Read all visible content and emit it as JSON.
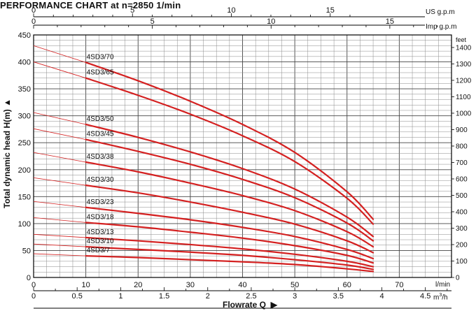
{
  "title": "PERFORMANCE CHART at n=2850 1/min",
  "chart_data": {
    "type": "line",
    "title": "PERFORMANCE CHART at n=2850 1/min",
    "ylabel": "Total dynamic head H(m)",
    "xlabel": "Flowrate Q",
    "x_unit": "l/min",
    "ylim": [
      0,
      450
    ],
    "xlim": [
      0,
      80
    ],
    "grid": true,
    "y_ticks": [
      0,
      50,
      100,
      150,
      200,
      250,
      300,
      350,
      400,
      450
    ],
    "x_ticks_lmin": [
      0,
      10,
      20,
      30,
      40,
      50,
      60,
      70
    ],
    "right_axis": {
      "label": "feet",
      "ticks": [
        0,
        100,
        200,
        300,
        400,
        500,
        600,
        700,
        800,
        900,
        1000,
        1100,
        1200,
        1300,
        1400
      ]
    },
    "m3h_axis": {
      "unit": "m3/h",
      "ticks": [
        0,
        0.5,
        1,
        1.5,
        2,
        2.5,
        3,
        3.5,
        4,
        4.5
      ]
    },
    "usgpm_axis": {
      "unit": "US g.p.m",
      "ticks": [
        0,
        5,
        10,
        15
      ]
    },
    "impgpm_axis": {
      "unit": "Imp g.p.m",
      "ticks": [
        0,
        5,
        10,
        15
      ]
    },
    "curve_color": "#d42020",
    "x": [
      0,
      10,
      20,
      30,
      40,
      50,
      60,
      65
    ],
    "series": [
      {
        "name": "4SD3/70",
        "values": [
          430,
          399,
          365,
          327,
          284,
          232,
          159,
          108
        ]
      },
      {
        "name": "4SD3/65",
        "values": [
          400,
          370,
          338,
          303,
          263,
          215,
          147,
          99
        ]
      },
      {
        "name": "4SD3/50",
        "values": [
          306,
          284,
          260,
          233,
          202,
          164,
          112,
          76
        ]
      },
      {
        "name": "4SD3/45",
        "values": [
          276,
          256,
          234,
          210,
          182,
          148,
          101,
          68
        ]
      },
      {
        "name": "4SD3/38",
        "values": [
          232,
          214,
          196,
          175,
          152,
          124,
          85,
          57
        ]
      },
      {
        "name": "4SD3/30",
        "values": [
          185,
          171,
          157,
          140,
          121,
          99,
          68,
          46
        ]
      },
      {
        "name": "4SD3/23",
        "values": [
          141,
          130,
          119,
          107,
          93,
          76,
          52,
          35
        ]
      },
      {
        "name": "4SD3/18",
        "values": [
          111,
          102,
          94,
          84,
          73,
          59,
          41,
          27
        ]
      },
      {
        "name": "4SD3/13",
        "values": [
          80,
          74,
          68,
          61,
          53,
          43,
          30,
          20
        ]
      },
      {
        "name": "4SD3/10",
        "values": [
          62,
          57,
          52,
          47,
          41,
          33,
          23,
          15
        ]
      },
      {
        "name": "4SD3/7",
        "values": [
          44,
          40,
          37,
          33,
          29,
          24,
          16,
          11
        ]
      }
    ]
  }
}
